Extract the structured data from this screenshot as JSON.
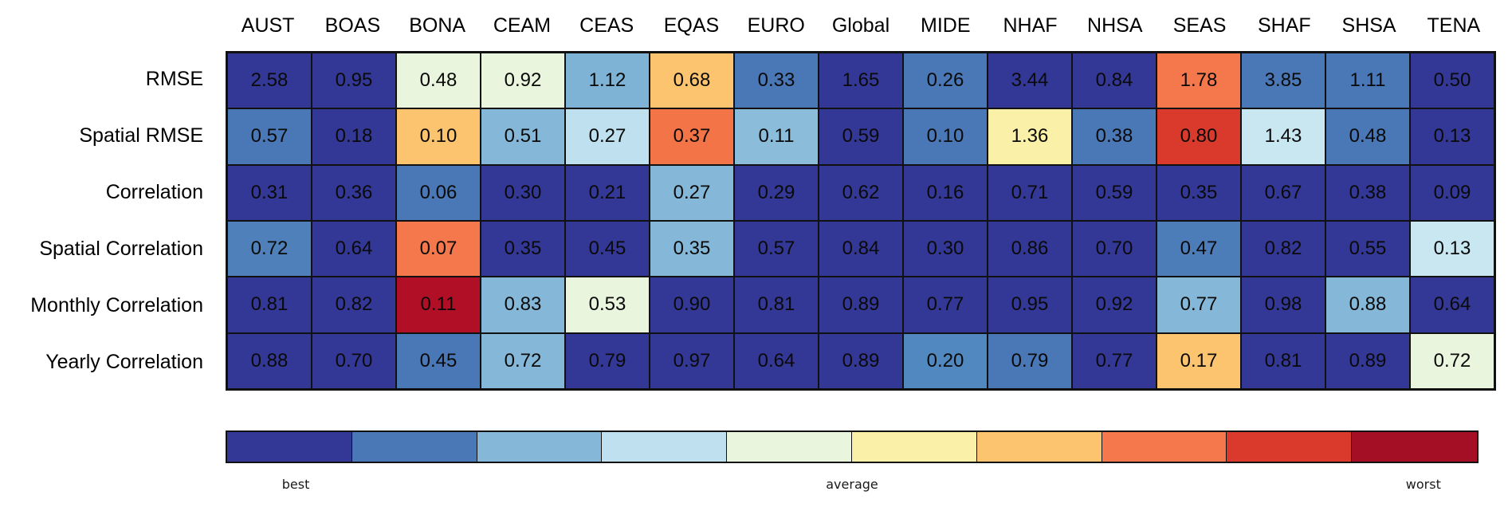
{
  "chart_data": {
    "type": "heatmap",
    "title": "",
    "columns": [
      "AUST",
      "BOAS",
      "BONA",
      "CEAM",
      "CEAS",
      "EQAS",
      "EURO",
      "Global",
      "MIDE",
      "NHAF",
      "NHSA",
      "SEAS",
      "SHAF",
      "SHSA",
      "TENA"
    ],
    "rows": [
      "RMSE",
      "Spatial RMSE",
      "Correlation",
      "Spatial Correlation",
      "Monthly Correlation",
      "Yearly Correlation"
    ],
    "values": [
      [
        "2.58",
        "0.95",
        "0.48",
        "0.92",
        "1.12",
        "0.68",
        "0.33",
        "1.65",
        "0.26",
        "3.44",
        "0.84",
        "1.78",
        "3.85",
        "1.11",
        "0.50"
      ],
      [
        "0.57",
        "0.18",
        "0.10",
        "0.51",
        "0.27",
        "0.37",
        "0.11",
        "0.59",
        "0.10",
        "1.36",
        "0.38",
        "0.80",
        "1.43",
        "0.48",
        "0.13"
      ],
      [
        "0.31",
        "0.36",
        "0.06",
        "0.30",
        "0.21",
        "0.27",
        "0.29",
        "0.62",
        "0.16",
        "0.71",
        "0.59",
        "0.35",
        "0.67",
        "0.38",
        "0.09"
      ],
      [
        "0.72",
        "0.64",
        "0.07",
        "0.35",
        "0.45",
        "0.35",
        "0.57",
        "0.84",
        "0.30",
        "0.86",
        "0.70",
        "0.47",
        "0.82",
        "0.55",
        "0.13"
      ],
      [
        "0.81",
        "0.82",
        "0.11",
        "0.83",
        "0.53",
        "0.90",
        "0.81",
        "0.89",
        "0.77",
        "0.95",
        "0.92",
        "0.77",
        "0.98",
        "0.88",
        "0.64"
      ],
      [
        "0.88",
        "0.70",
        "0.45",
        "0.72",
        "0.79",
        "0.97",
        "0.64",
        "0.89",
        "0.20",
        "0.79",
        "0.77",
        "0.17",
        "0.81",
        "0.89",
        "0.72"
      ]
    ],
    "cell_colors": [
      [
        "#333795",
        "#333795",
        "#e9f5dc",
        "#e9f5dc",
        "#7eb3d5",
        "#fcc46e",
        "#4a77b5",
        "#333795",
        "#4a77b5",
        "#333795",
        "#333795",
        "#f4784c",
        "#4a77b5",
        "#4a77b5",
        "#333795"
      ],
      [
        "#4a77b5",
        "#333795",
        "#fcc46e",
        "#85b8d8",
        "#bfe0ee",
        "#f37447",
        "#8bbcda",
        "#333795",
        "#4a77b5",
        "#fbf0a7",
        "#4a77b5",
        "#d93a2b",
        "#c9e7f1",
        "#4a77b5",
        "#333795"
      ],
      [
        "#333795",
        "#333795",
        "#4a77b5",
        "#333795",
        "#333795",
        "#85b8d8",
        "#333795",
        "#333795",
        "#333795",
        "#333795",
        "#333795",
        "#333795",
        "#333795",
        "#333795",
        "#333795"
      ],
      [
        "#4f80ba",
        "#333795",
        "#f4784c",
        "#333795",
        "#333795",
        "#85b8d8",
        "#333795",
        "#333795",
        "#333795",
        "#333795",
        "#333795",
        "#4d7db8",
        "#333795",
        "#333795",
        "#c9e7f1"
      ],
      [
        "#333795",
        "#333795",
        "#b00f26",
        "#85b8d8",
        "#e9f5dc",
        "#333795",
        "#333795",
        "#333795",
        "#333795",
        "#333795",
        "#333795",
        "#85b8d8",
        "#333795",
        "#85b8d8",
        "#333795"
      ],
      [
        "#333795",
        "#333795",
        "#4a77b5",
        "#85b8d8",
        "#333795",
        "#333795",
        "#333795",
        "#333795",
        "#5188bf",
        "#4a77b5",
        "#333795",
        "#fcc46e",
        "#333795",
        "#333795",
        "#e9f5dc"
      ]
    ],
    "colorbar": {
      "segment_colors": [
        "#333795",
        "#4a77b5",
        "#85b8d8",
        "#bfe0ee",
        "#e9f5dc",
        "#fbf0a7",
        "#fcc46e",
        "#f4784c",
        "#d93a2b",
        "#a50f26"
      ],
      "labels": {
        "best": "best",
        "average": "average",
        "worst": "worst"
      }
    },
    "legend_position": "bottom",
    "grid": true
  },
  "colors": {
    "cell_text": "#0a0a0a",
    "border": "#111111",
    "background": "#ffffff"
  }
}
